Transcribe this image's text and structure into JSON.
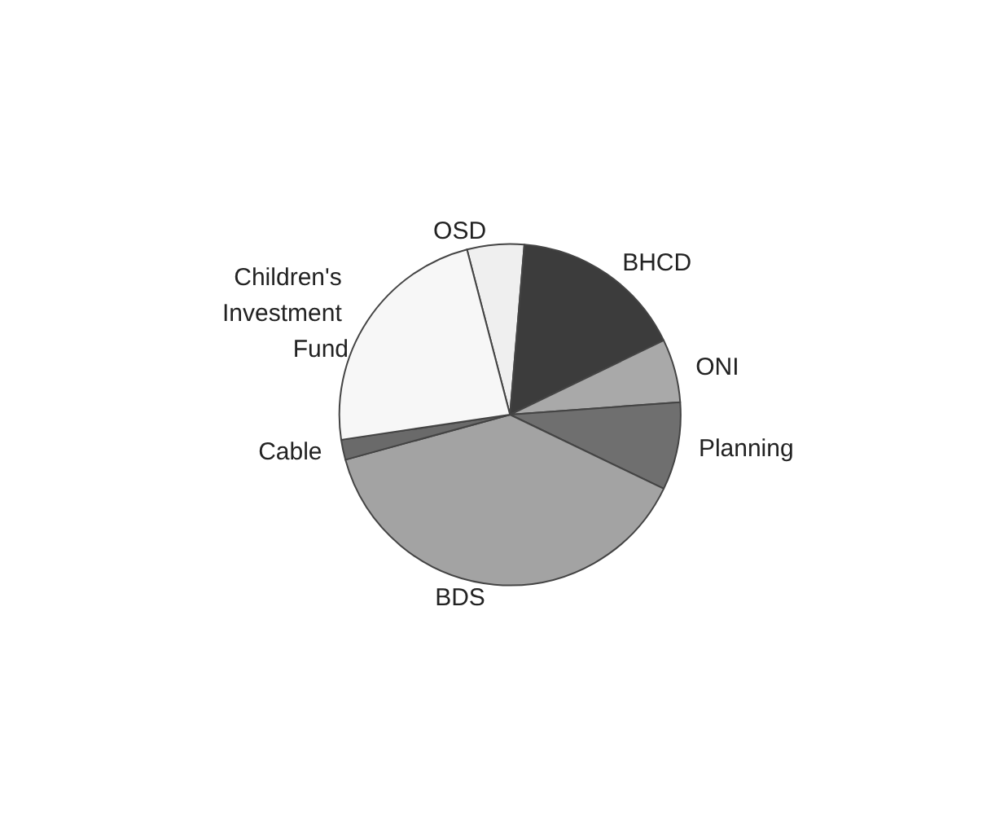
{
  "chart_data": {
    "type": "pie",
    "categories": [
      "OSD",
      "BHCD",
      "ONI",
      "Planning",
      "BDS",
      "Cable",
      "Children's Investment Fund"
    ],
    "values": [
      5.4,
      16.5,
      6.0,
      8.3,
      38.6,
      1.9,
      23.3
    ],
    "colors": [
      "#efefef",
      "#3c3c3c",
      "#a9a9a9",
      "#6f6f6f",
      "#a3a3a3",
      "#6a6a6a",
      "#f7f7f7"
    ]
  }
}
